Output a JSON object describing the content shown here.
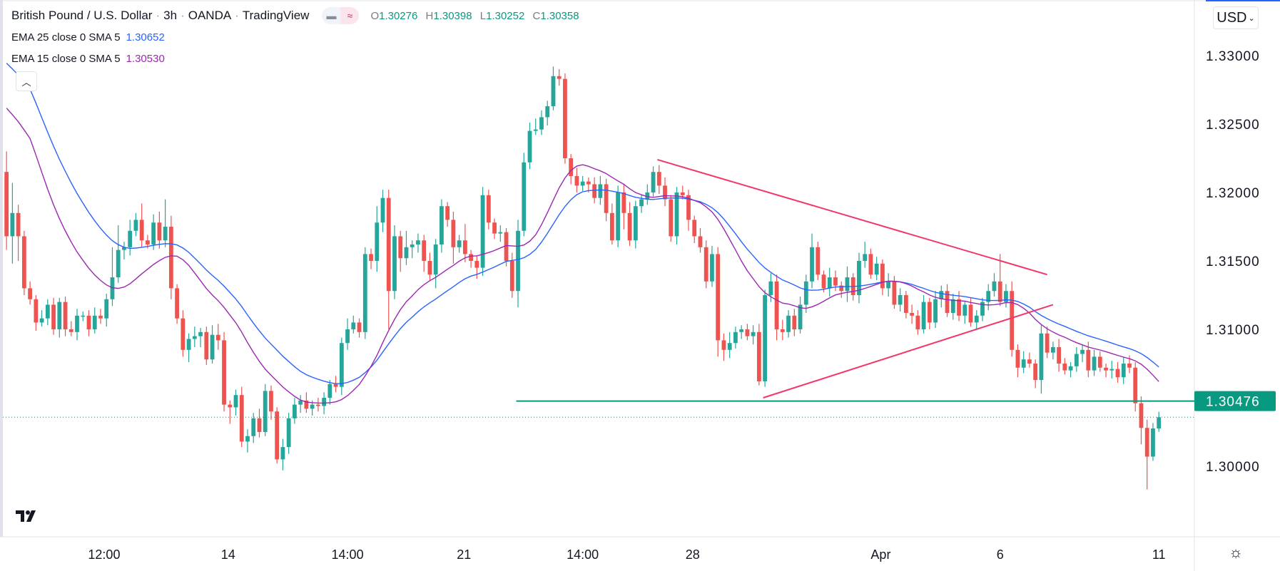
{
  "header": {
    "symbol": "British Pound / U.S. Dollar",
    "interval": "3h",
    "exchange": "OANDA",
    "source": "TradingView",
    "sep": "·",
    "ohlc": {
      "o_label": "O",
      "o": "1.30276",
      "h_label": "H",
      "h": "1.30398",
      "l_label": "L",
      "l": "1.30252",
      "c_label": "C",
      "c": "1.30358"
    }
  },
  "indicators": [
    {
      "label": "EMA 25 close 0 SMA 5",
      "value": "1.30652",
      "color": "#2962ff"
    },
    {
      "label": "EMA 15 close 0 SMA 5",
      "value": "1.30530",
      "color": "#9c27b0"
    }
  ],
  "currency": "USD",
  "colors": {
    "up": "#26a69a",
    "down": "#ef5350",
    "trend": "#f23669",
    "level": "#089981",
    "ema25": "#2962ff",
    "ema15": "#9c27b0"
  },
  "chart_data": {
    "type": "candlestick",
    "title": "British Pound / U.S. Dollar · 3h · OANDA",
    "ylim": [
      1.2955,
      1.3345
    ],
    "y_ticks": [
      "1.33000",
      "1.32500",
      "1.32000",
      "1.31500",
      "1.31000",
      "1.30000"
    ],
    "x_ticks": [
      {
        "label": "12:00",
        "index": 16.6
      },
      {
        "label": "14",
        "index": 37.7
      },
      {
        "label": "14:00",
        "index": 58
      },
      {
        "label": "21",
        "index": 77.8
      },
      {
        "label": "14:00",
        "index": 98
      },
      {
        "label": "28",
        "index": 116.7
      },
      {
        "label": "Apr",
        "index": 148.7
      },
      {
        "label": "6",
        "index": 169
      },
      {
        "label": "11",
        "index": 196
      }
    ],
    "first_open": 1.3215,
    "close": [
      1.3168,
      1.3185,
      1.3168,
      1.313,
      1.3122,
      1.3105,
      1.3108,
      1.3118,
      1.31,
      1.312,
      1.31,
      1.3098,
      1.311,
      1.311,
      1.31,
      1.311,
      1.3108,
      1.3122,
      1.3138,
      1.3158,
      1.316,
      1.3172,
      1.318,
      1.3165,
      1.3162,
      1.3178,
      1.3165,
      1.3175,
      1.313,
      1.3108,
      1.3085,
      1.3093,
      1.3095,
      1.3098,
      1.3078,
      1.3096,
      1.3092,
      1.3045,
      1.3043,
      1.3052,
      1.3018,
      1.3022,
      1.3035,
      1.3025,
      1.3055,
      1.304,
      1.3005,
      1.3014,
      1.3035,
      1.3045,
      1.3048,
      1.3042,
      1.3045,
      1.3044,
      1.305,
      1.306,
      1.3058,
      1.309,
      1.31,
      1.3105,
      1.3098,
      1.3155,
      1.315,
      1.3178,
      1.3196,
      1.3128,
      1.3168,
      1.3152,
      1.316,
      1.3162,
      1.3165,
      1.315,
      1.314,
      1.3162,
      1.319,
      1.318,
      1.316,
      1.3165,
      1.3155,
      1.315,
      1.3145,
      1.3198,
      1.3178,
      1.317,
      1.3171,
      1.315,
      1.3128,
      1.3172,
      1.3222,
      1.3245,
      1.3246,
      1.3255,
      1.3263,
      1.3285,
      1.3283,
      1.3225,
      1.3212,
      1.3205,
      1.3208,
      1.3206,
      1.3196,
      1.3206,
      1.3185,
      1.3165,
      1.32,
      1.3185,
      1.3165,
      1.319,
      1.3195,
      1.32,
      1.3215,
      1.3205,
      1.3195,
      1.3168,
      1.32,
      1.3198,
      1.318,
      1.3168,
      1.316,
      1.3135,
      1.3155,
      1.3092,
      1.3085,
      1.309,
      1.3098,
      1.31,
      1.3095,
      1.3098,
      1.3062,
      1.3125,
      1.3135,
      1.31,
      1.3098,
      1.311,
      1.31,
      1.3118,
      1.3135,
      1.316,
      1.314,
      1.313,
      1.3138,
      1.3132,
      1.3128,
      1.3138,
      1.3125,
      1.315,
      1.3155,
      1.314,
      1.3148,
      1.313,
      1.3135,
      1.3118,
      1.3125,
      1.3112,
      1.311,
      1.31,
      1.312,
      1.3105,
      1.3122,
      1.3128,
      1.3112,
      1.3122,
      1.311,
      1.3118,
      1.3105,
      1.311,
      1.312,
      1.3128,
      1.3135,
      1.312,
      1.3128,
      1.3085,
      1.3072,
      1.3078,
      1.3075,
      1.3063,
      1.3097,
      1.3083,
      1.3087,
      1.3075,
      1.307,
      1.3073,
      1.3082,
      1.3085,
      1.307,
      1.308,
      1.3072,
      1.307,
      1.3071,
      1.3065,
      1.3075,
      1.3072,
      1.3046,
      1.3028,
      1.3007,
      1.30276,
      1.30358
    ],
    "upper_wick_pips": [
      15,
      22,
      6,
      4,
      5,
      3,
      6,
      4,
      5,
      3,
      4,
      6,
      5,
      3,
      4,
      6,
      5,
      4,
      22,
      18,
      4,
      8,
      5,
      12,
      4,
      6,
      8,
      20,
      8,
      3,
      6,
      4,
      7,
      3,
      4,
      7,
      8,
      6,
      3,
      4,
      6,
      5,
      4,
      7,
      5,
      4,
      3,
      6,
      4,
      5,
      4,
      6,
      3,
      5,
      4,
      3,
      6,
      4,
      8,
      5,
      3,
      5,
      4,
      12,
      6,
      6,
      8,
      4,
      12,
      3,
      5,
      4,
      6,
      4,
      5,
      3,
      6,
      4,
      12,
      3,
      4,
      6,
      4,
      3,
      5,
      3,
      6,
      8,
      7,
      6,
      8,
      5,
      4,
      7,
      5,
      4,
      3,
      6,
      4,
      3,
      5,
      6,
      4,
      7,
      5,
      6,
      8,
      4,
      3,
      6,
      4,
      5,
      6,
      3,
      4,
      5,
      4,
      3,
      6,
      5,
      6,
      5,
      5,
      8,
      4,
      3,
      4,
      5,
      6,
      4,
      6,
      5,
      7,
      4,
      5,
      6,
      5,
      10,
      4,
      3,
      7,
      5,
      3,
      8,
      3,
      6,
      9,
      4,
      5,
      3,
      6,
      4,
      5,
      3,
      6,
      4,
      5,
      3,
      6,
      4,
      5,
      4,
      6,
      3,
      5,
      4,
      3,
      5,
      6,
      20,
      5,
      7,
      4,
      6,
      5,
      3,
      6,
      5,
      4,
      6,
      4,
      3,
      5,
      4,
      6,
      5,
      4,
      3,
      6,
      5,
      5,
      6,
      4,
      5,
      6,
      4,
      4
    ],
    "lower_wick_pips": [
      10,
      20,
      18,
      5,
      4,
      6,
      3,
      5,
      4,
      6,
      5,
      3,
      6,
      4,
      5,
      3,
      4,
      6,
      5,
      4,
      7,
      6,
      4,
      5,
      3,
      4,
      6,
      5,
      8,
      4,
      5,
      9,
      6,
      8,
      4,
      3,
      7,
      5,
      12,
      6,
      4,
      8,
      5,
      4,
      3,
      6,
      3,
      8,
      5,
      4,
      6,
      3,
      5,
      4,
      6,
      5,
      4,
      6,
      5,
      3,
      4,
      5,
      6,
      8,
      7,
      28,
      6,
      10,
      5,
      8,
      6,
      8,
      4,
      10,
      6,
      5,
      12,
      4,
      6,
      5,
      8,
      6,
      5,
      4,
      6,
      4,
      5,
      12,
      4,
      5,
      3,
      4,
      6,
      3,
      5,
      4,
      6,
      5,
      4,
      6,
      4,
      5,
      6,
      3,
      5,
      12,
      4,
      6,
      5,
      4,
      3,
      6,
      5,
      4,
      6,
      3,
      8,
      5,
      4,
      5,
      4,
      12,
      8,
      6,
      4,
      5,
      3,
      6,
      3,
      4,
      5,
      8,
      6,
      4,
      5,
      3,
      6,
      5,
      4,
      3,
      6,
      4,
      5,
      8,
      4,
      6,
      5,
      3,
      4,
      5,
      6,
      3,
      5,
      4,
      6,
      4,
      3,
      5,
      4,
      6,
      3,
      5,
      4,
      6,
      3,
      5,
      4,
      6,
      4,
      3,
      4,
      5,
      7,
      4,
      3,
      6,
      10,
      4,
      5,
      6,
      3,
      5,
      4,
      6,
      5,
      4,
      3,
      5,
      6,
      4,
      5,
      4,
      6,
      12,
      24,
      3,
      2
    ]
  },
  "drawings": {
    "resistance_trendline": {
      "from": {
        "index": 110.7,
        "price": 1.3224
      },
      "to": {
        "index": 177,
        "price": 1.314
      }
    },
    "support_trendline": {
      "from": {
        "index": 128.7,
        "price": 1.305
      },
      "to": {
        "index": 178,
        "price": 1.3118
      }
    },
    "horizontal_level": {
      "from_index": 86.7,
      "price": 1.30476,
      "label": "1.30476"
    },
    "last_price": 1.30358
  }
}
